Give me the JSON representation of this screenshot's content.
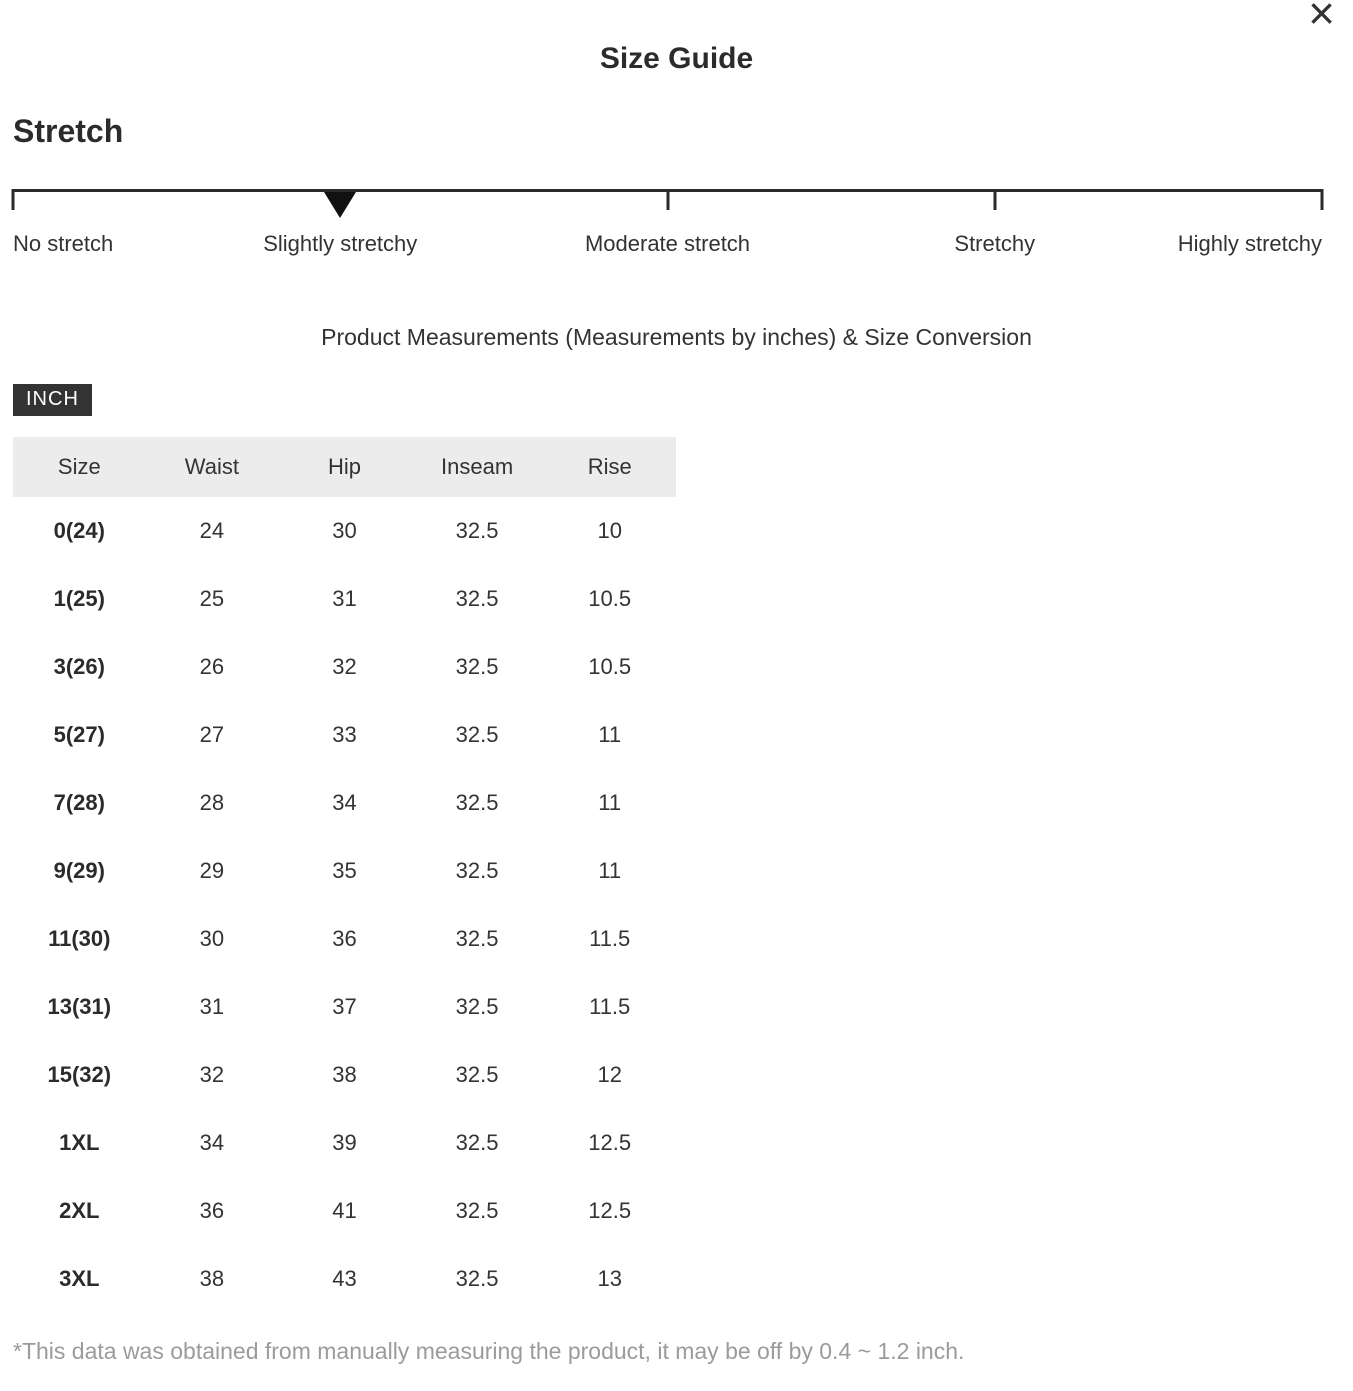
{
  "modal": {
    "title": "Size Guide"
  },
  "icons": {
    "close": "×"
  },
  "stretch": {
    "heading": "Stretch",
    "levels": [
      "No stretch",
      "Slightly stretchy",
      "Moderate stretch",
      "Stretchy",
      "Highly stretchy"
    ],
    "selected": "Slightly stretchy",
    "selected_index": 1
  },
  "measurements": {
    "subtitle": "Product Measurements (Measurements by inches) & Size Conversion",
    "unit_badge": "INCH",
    "table": {
      "headers": [
        "Size",
        "Waist",
        "Hip",
        "Inseam",
        "Rise"
      ],
      "rows": [
        {
          "size": "0(24)",
          "waist": "24",
          "hip": "30",
          "inseam": "32.5",
          "rise": "10"
        },
        {
          "size": "1(25)",
          "waist": "25",
          "hip": "31",
          "inseam": "32.5",
          "rise": "10.5"
        },
        {
          "size": "3(26)",
          "waist": "26",
          "hip": "32",
          "inseam": "32.5",
          "rise": "10.5"
        },
        {
          "size": "5(27)",
          "waist": "27",
          "hip": "33",
          "inseam": "32.5",
          "rise": "11"
        },
        {
          "size": "7(28)",
          "waist": "28",
          "hip": "34",
          "inseam": "32.5",
          "rise": "11"
        },
        {
          "size": "9(29)",
          "waist": "29",
          "hip": "35",
          "inseam": "32.5",
          "rise": "11"
        },
        {
          "size": "11(30)",
          "waist": "30",
          "hip": "36",
          "inseam": "32.5",
          "rise": "11.5"
        },
        {
          "size": "13(31)",
          "waist": "31",
          "hip": "37",
          "inseam": "32.5",
          "rise": "11.5"
        },
        {
          "size": "15(32)",
          "waist": "32",
          "hip": "38",
          "inseam": "32.5",
          "rise": "12"
        },
        {
          "size": "1XL",
          "waist": "34",
          "hip": "39",
          "inseam": "32.5",
          "rise": "12.5"
        },
        {
          "size": "2XL",
          "waist": "36",
          "hip": "41",
          "inseam": "32.5",
          "rise": "12.5"
        },
        {
          "size": "3XL",
          "waist": "38",
          "hip": "43",
          "inseam": "32.5",
          "rise": "13"
        }
      ]
    },
    "footnote": "*This data was obtained from manually measuring the product, it may be off by 0.4 ~ 1.2 inch."
  },
  "colors": {
    "accent_dark": "#2b2b2b",
    "text": "#333333",
    "muted": "#9b9b9b",
    "table_header_bg": "#ececec",
    "badge_bg": "#333333",
    "badge_text": "#ffffff"
  }
}
